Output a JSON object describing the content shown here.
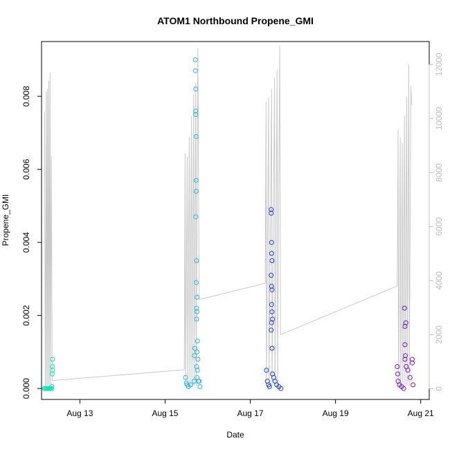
{
  "chart_data": {
    "type": "scatter",
    "title": "ATOM1 Northbound Propene_GMI",
    "xlabel": "Date",
    "ylabel": "Propene_GMI",
    "xlim_days": [
      12.1,
      21.2
    ],
    "ylim": [
      -0.0003,
      0.0095
    ],
    "y2lim": [
      -400,
      12850
    ],
    "x_ticks": [
      {
        "label": "Aug 13",
        "value": 13
      },
      {
        "label": "Aug 15",
        "value": 15
      },
      {
        "label": "Aug 17",
        "value": 17
      },
      {
        "label": "Aug 19",
        "value": 19
      },
      {
        "label": "Aug 21",
        "value": 21
      }
    ],
    "y_ticks": [
      {
        "label": "0.000",
        "value": 0.0
      },
      {
        "label": "0.002",
        "value": 0.002
      },
      {
        "label": "0.004",
        "value": 0.004
      },
      {
        "label": "0.006",
        "value": 0.006
      },
      {
        "label": "0.008",
        "value": 0.008
      }
    ],
    "y2_ticks": [
      {
        "label": "0",
        "value": 0
      },
      {
        "label": "2000",
        "value": 2000
      },
      {
        "label": "4000",
        "value": 4000
      },
      {
        "label": "6000",
        "value": 6000
      },
      {
        "label": "8000",
        "value": 8000
      },
      {
        "label": "10000",
        "value": 10000
      },
      {
        "label": "12000",
        "value": 12000
      }
    ],
    "colors": {
      "line": "#c8c8c8",
      "axis": "#000000",
      "right_axis": "#bdbdbd",
      "series": [
        "#00e8b8",
        "#1fb8ee",
        "#1a3cf0",
        "#6a10ef"
      ]
    },
    "line_series": [
      {
        "x": 12.17,
        "y": 10250
      },
      {
        "x": 12.19,
        "y": 100
      },
      {
        "x": 12.21,
        "y": 11000
      },
      {
        "x": 12.22,
        "y": 100
      },
      {
        "x": 12.24,
        "y": 11100
      },
      {
        "x": 12.25,
        "y": 100
      },
      {
        "x": 12.27,
        "y": 11400
      },
      {
        "x": 12.28,
        "y": 100
      },
      {
        "x": 12.3,
        "y": 11700
      },
      {
        "x": 12.31,
        "y": 100
      },
      {
        "x": 12.33,
        "y": 8600
      },
      {
        "x": 12.35,
        "y": 300
      },
      {
        "x": 15.45,
        "y": 700
      },
      {
        "x": 15.47,
        "y": 8700
      },
      {
        "x": 15.48,
        "y": 100
      },
      {
        "x": 15.52,
        "y": 8600
      },
      {
        "x": 15.53,
        "y": 100
      },
      {
        "x": 15.57,
        "y": 9300
      },
      {
        "x": 15.58,
        "y": 100
      },
      {
        "x": 15.62,
        "y": 10100
      },
      {
        "x": 15.63,
        "y": 100
      },
      {
        "x": 15.67,
        "y": 10900
      },
      {
        "x": 15.68,
        "y": 100
      },
      {
        "x": 15.72,
        "y": 11300
      },
      {
        "x": 15.73,
        "y": 100
      },
      {
        "x": 15.77,
        "y": 12600
      },
      {
        "x": 15.8,
        "y": 3300
      },
      {
        "x": 17.35,
        "y": 3900
      },
      {
        "x": 17.37,
        "y": 10600
      },
      {
        "x": 17.38,
        "y": 100
      },
      {
        "x": 17.43,
        "y": 10800
      },
      {
        "x": 17.44,
        "y": 100
      },
      {
        "x": 17.5,
        "y": 11100
      },
      {
        "x": 17.51,
        "y": 100
      },
      {
        "x": 17.57,
        "y": 11500
      },
      {
        "x": 17.58,
        "y": 100
      },
      {
        "x": 17.63,
        "y": 11800
      },
      {
        "x": 17.64,
        "y": 100
      },
      {
        "x": 17.69,
        "y": 12700
      },
      {
        "x": 17.71,
        "y": 2000
      },
      {
        "x": 20.45,
        "y": 3800
      },
      {
        "x": 20.47,
        "y": 9600
      },
      {
        "x": 20.48,
        "y": 100
      },
      {
        "x": 20.52,
        "y": 9300
      },
      {
        "x": 20.53,
        "y": 100
      },
      {
        "x": 20.57,
        "y": 9100
      },
      {
        "x": 20.58,
        "y": 100
      },
      {
        "x": 20.62,
        "y": 10100
      },
      {
        "x": 20.63,
        "y": 100
      },
      {
        "x": 20.67,
        "y": 10800
      },
      {
        "x": 20.68,
        "y": 100
      },
      {
        "x": 20.72,
        "y": 12000
      },
      {
        "x": 20.73,
        "y": 100
      },
      {
        "x": 20.77,
        "y": 11200
      },
      {
        "x": 20.79,
        "y": 10500
      }
    ],
    "scatter_groups": [
      {
        "color": "#00e8b8",
        "points": [
          {
            "x": 12.17,
            "y": 0.0
          },
          {
            "x": 12.19,
            "y": 0.0
          },
          {
            "x": 12.21,
            "y": 0.0
          },
          {
            "x": 12.23,
            "y": 0.0
          },
          {
            "x": 12.25,
            "y": 0.0
          },
          {
            "x": 12.27,
            "y": 0.0
          },
          {
            "x": 12.29,
            "y": 0.0
          },
          {
            "x": 12.31,
            "y": 0.0
          },
          {
            "x": 12.33,
            "y": 0.0
          },
          {
            "x": 12.34,
            "y": 5e-05
          },
          {
            "x": 12.35,
            "y": 0.0004
          },
          {
            "x": 12.36,
            "y": 0.0008
          },
          {
            "x": 12.35,
            "y": 0.0006
          },
          {
            "x": 12.36,
            "y": 0.0005
          }
        ]
      },
      {
        "color": "#1fb8ee",
        "points": [
          {
            "x": 15.48,
            "y": 0.0003
          },
          {
            "x": 15.5,
            "y": 0.00015
          },
          {
            "x": 15.52,
            "y": 0.0001
          },
          {
            "x": 15.55,
            "y": 5e-05
          },
          {
            "x": 15.6,
            "y": 0.0001
          },
          {
            "x": 15.68,
            "y": 0.0002
          },
          {
            "x": 15.69,
            "y": 0.0009
          },
          {
            "x": 15.7,
            "y": 0.0011
          },
          {
            "x": 15.71,
            "y": 0.009
          },
          {
            "x": 15.71,
            "y": 0.0087
          },
          {
            "x": 15.72,
            "y": 0.0082
          },
          {
            "x": 15.72,
            "y": 0.0076
          },
          {
            "x": 15.72,
            "y": 0.0075
          },
          {
            "x": 15.73,
            "y": 0.0069
          },
          {
            "x": 15.73,
            "y": 0.0057
          },
          {
            "x": 15.73,
            "y": 0.0054
          },
          {
            "x": 15.72,
            "y": 0.0047
          },
          {
            "x": 15.74,
            "y": 0.0035
          },
          {
            "x": 15.73,
            "y": 0.0029
          },
          {
            "x": 15.75,
            "y": 0.0025
          },
          {
            "x": 15.74,
            "y": 0.0022
          },
          {
            "x": 15.75,
            "y": 0.0021
          },
          {
            "x": 15.74,
            "y": 0.0019
          },
          {
            "x": 15.76,
            "y": 0.0013
          },
          {
            "x": 15.75,
            "y": 0.001
          },
          {
            "x": 15.77,
            "y": 0.0008
          },
          {
            "x": 15.74,
            "y": 0.0006
          },
          {
            "x": 15.76,
            "y": 0.0005
          },
          {
            "x": 15.75,
            "y": 0.0003
          },
          {
            "x": 15.78,
            "y": 0.0002
          },
          {
            "x": 15.8,
            "y": 0.0002
          },
          {
            "x": 15.82,
            "y": 5e-05
          }
        ]
      },
      {
        "color": "#1a3cf0",
        "points": [
          {
            "x": 17.38,
            "y": 0.0005
          },
          {
            "x": 17.4,
            "y": 0.0002
          },
          {
            "x": 17.43,
            "y": 0.0001
          },
          {
            "x": 17.45,
            "y": 5e-05
          },
          {
            "x": 17.49,
            "y": 0.0049
          },
          {
            "x": 17.49,
            "y": 0.0048
          },
          {
            "x": 17.5,
            "y": 0.004
          },
          {
            "x": 17.5,
            "y": 0.0037
          },
          {
            "x": 17.51,
            "y": 0.0035
          },
          {
            "x": 17.49,
            "y": 0.0031
          },
          {
            "x": 17.5,
            "y": 0.0028
          },
          {
            "x": 17.51,
            "y": 0.0027
          },
          {
            "x": 17.5,
            "y": 0.0023
          },
          {
            "x": 17.51,
            "y": 0.0021
          },
          {
            "x": 17.52,
            "y": 0.0019
          },
          {
            "x": 17.5,
            "y": 0.0018
          },
          {
            "x": 17.49,
            "y": 0.0016
          },
          {
            "x": 17.51,
            "y": 0.0011
          },
          {
            "x": 17.52,
            "y": 0.0004
          },
          {
            "x": 17.55,
            "y": 0.0003
          },
          {
            "x": 17.58,
            "y": 0.0002
          },
          {
            "x": 17.62,
            "y": 0.0001
          },
          {
            "x": 17.67,
            "y": 5e-05
          },
          {
            "x": 17.72,
            "y": 0.0
          }
        ]
      },
      {
        "color": "#6a10ef",
        "points": [
          {
            "x": 20.45,
            "y": 0.0006
          },
          {
            "x": 20.46,
            "y": 0.0004
          },
          {
            "x": 20.47,
            "y": 0.0002
          },
          {
            "x": 20.5,
            "y": 0.0001
          },
          {
            "x": 20.55,
            "y": 5e-05
          },
          {
            "x": 20.6,
            "y": 0.0
          },
          {
            "x": 20.63,
            "y": 0.0012
          },
          {
            "x": 20.62,
            "y": 0.0022
          },
          {
            "x": 20.63,
            "y": 0.0017
          },
          {
            "x": 20.65,
            "y": 0.0018
          },
          {
            "x": 20.64,
            "y": 0.0009
          },
          {
            "x": 20.63,
            "y": 0.0008
          },
          {
            "x": 20.66,
            "y": 0.0006
          },
          {
            "x": 20.7,
            "y": 0.0005
          },
          {
            "x": 20.75,
            "y": 0.0003
          },
          {
            "x": 20.8,
            "y": 0.0008
          },
          {
            "x": 20.8,
            "y": 0.0007
          },
          {
            "x": 20.82,
            "y": 0.0001
          }
        ]
      }
    ]
  }
}
